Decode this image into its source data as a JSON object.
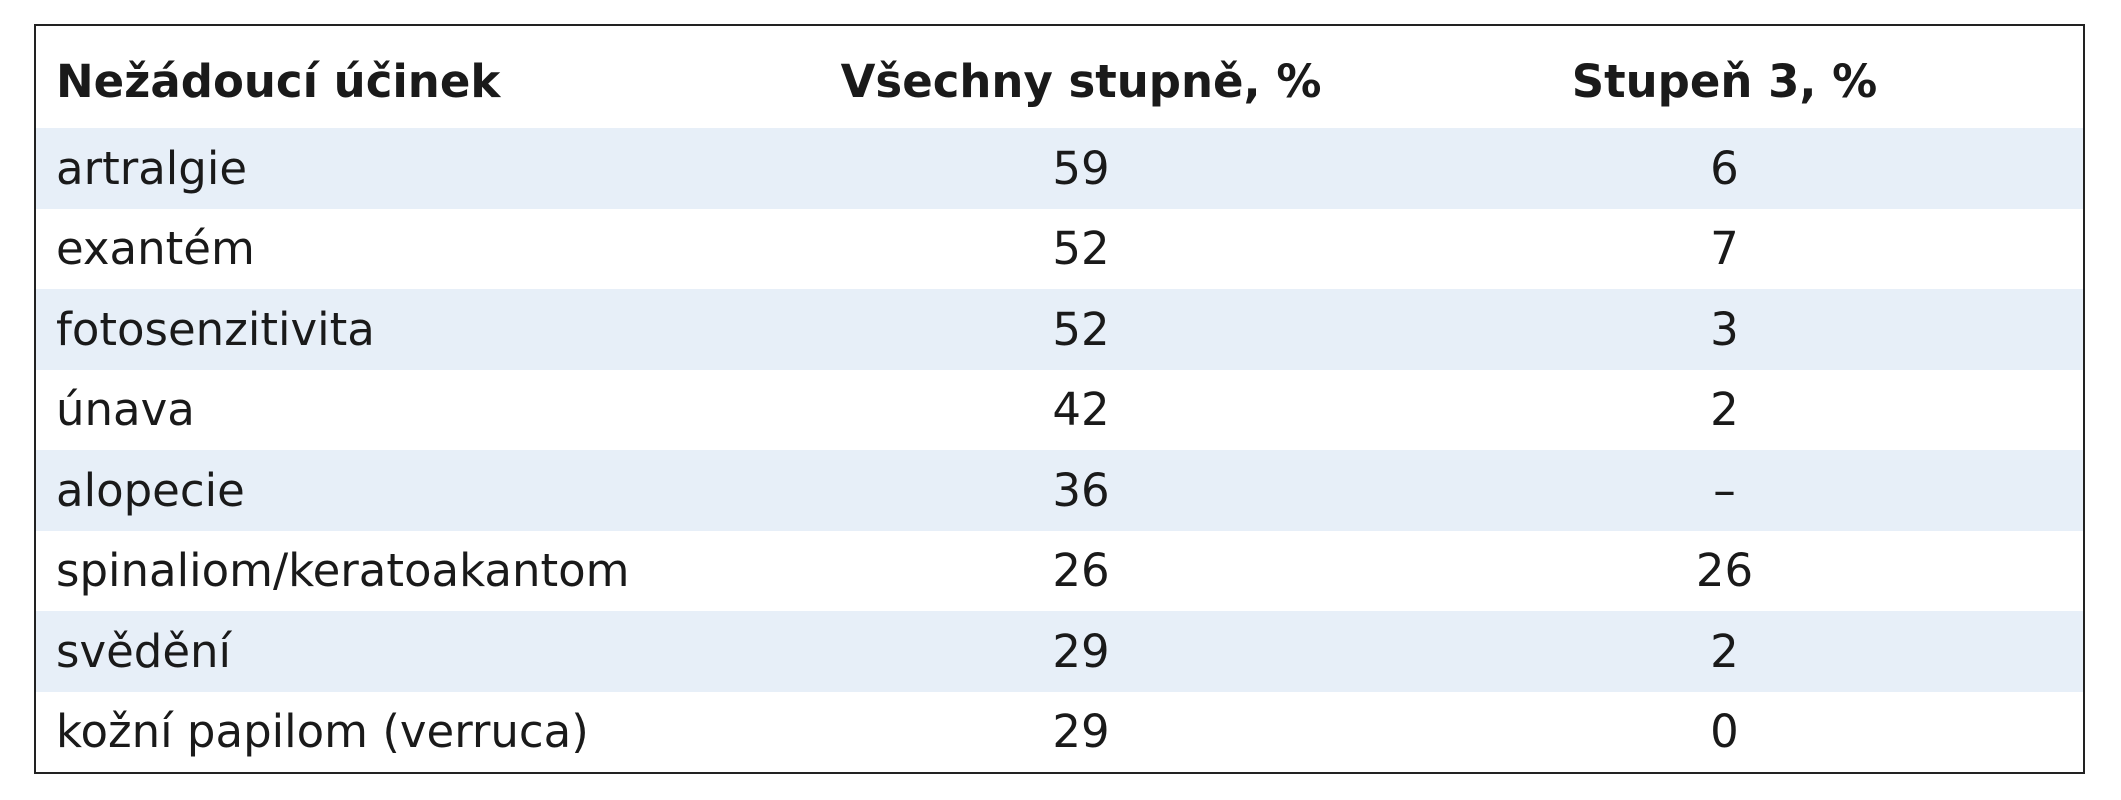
{
  "table": {
    "header": [
      "Nežádoucí účinek",
      "Všechny stupně, %",
      "Stupeň 3, %"
    ],
    "rows": [
      [
        "artralgie",
        59,
        6
      ],
      [
        "exantém",
        52,
        7
      ],
      [
        "fotosenzitivita",
        52,
        3
      ],
      [
        "únava",
        42,
        2
      ],
      [
        "alopecie",
        36,
        "–"
      ],
      [
        "spinaliom/keratoakantom",
        26,
        26
      ],
      [
        "svědění",
        29,
        2
      ],
      [
        "kožní papilom (verruca)",
        29,
        0
      ]
    ]
  }
}
